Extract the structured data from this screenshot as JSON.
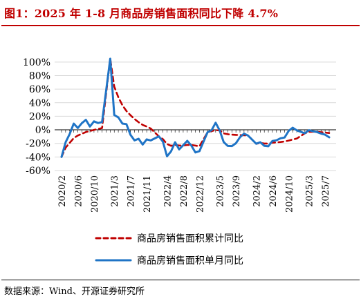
{
  "header": {
    "title": "图1：2025 年 1-8 月商品房销售面积同比下降 4.7%"
  },
  "footer": {
    "source": "数据来源：Wind、开源证券研究所"
  },
  "colors": {
    "title_red": "#c00000",
    "cumulative_series": "#c00000",
    "monthly_series": "#1f74c6",
    "grid": "#d9d9d9"
  },
  "chart_data": {
    "type": "line",
    "ylim": [
      -60,
      110
    ],
    "yticks": [
      "-60%",
      "-40%",
      "-20%",
      "0%",
      "20%",
      "40%",
      "60%",
      "80%",
      "100%"
    ],
    "ytick_values": [
      -60,
      -40,
      -20,
      0,
      20,
      40,
      60,
      80,
      100
    ],
    "grid": "horizontal",
    "legend_placement": "bottom-center",
    "x": [
      "2020-02",
      "2020-03",
      "2020-04",
      "2020-05",
      "2020-06",
      "2020-07",
      "2020-08",
      "2020-09",
      "2020-10",
      "2020-11",
      "2020-12",
      "2021-01",
      "2021-02",
      "2021-03",
      "2021-04",
      "2021-05",
      "2021-06",
      "2021-07",
      "2021-08",
      "2021-09",
      "2021-10",
      "2021-11",
      "2021-12",
      "2022-01",
      "2022-02",
      "2022-03",
      "2022-04",
      "2022-05",
      "2022-06",
      "2022-07",
      "2022-08",
      "2022-09",
      "2022-10",
      "2022-11",
      "2022-12",
      "2023-01",
      "2023-02",
      "2023-03",
      "2023-04",
      "2023-05",
      "2023-06",
      "2023-07",
      "2023-08",
      "2023-09",
      "2023-10",
      "2023-11",
      "2023-12",
      "2024-01",
      "2024-02",
      "2024-03",
      "2024-04",
      "2024-05",
      "2024-06",
      "2024-07",
      "2024-08",
      "2024-09",
      "2024-10",
      "2024-11",
      "2024-12",
      "2025-01",
      "2025-02",
      "2025-03",
      "2025-04",
      "2025-05",
      "2025-06",
      "2025-07",
      "2025-08"
    ],
    "xtick_labels": [
      "2020/2",
      "2020/6",
      "2020/10",
      "2021/3",
      "2021/7",
      "2021/11",
      "2022/4",
      "2022/8",
      "2022/12",
      "2023/5",
      "2023/9",
      "2024/2",
      "2024/6",
      "2024/10",
      "2025/3",
      "2025/7"
    ],
    "series": [
      {
        "name": "商品房销售面积累计同比",
        "style": "dashed",
        "color": "#c00000",
        "values": [
          -39.9,
          -26.3,
          -19.3,
          -12.3,
          -8.4,
          -5.8,
          -3.3,
          -1.8,
          0,
          1.3,
          2.6,
          null,
          104.9,
          63.8,
          48.1,
          36.3,
          27.7,
          21.5,
          15.9,
          11.3,
          7.3,
          4.8,
          1.9,
          null,
          -9.6,
          -13.8,
          -20.9,
          -23.6,
          -22.2,
          -23.1,
          -23.0,
          -22.2,
          -22.3,
          -23.3,
          -24.3,
          null,
          -3.6,
          -1.8,
          -0.4,
          -0.9,
          -5.3,
          -6.5,
          -7.1,
          -7.5,
          -7.8,
          -8.0,
          -8.5,
          null,
          -20.5,
          -19.4,
          -20.2,
          -20.3,
          -19.0,
          -18.6,
          -18.0,
          -17.1,
          -15.8,
          -14.3,
          -12.9,
          null,
          -5.1,
          -3.0,
          -2.8,
          -2.9,
          -3.5,
          -4.0,
          -4.7
        ]
      },
      {
        "name": "商品房销售面积单月同比",
        "style": "solid",
        "color": "#1f74c6",
        "values": [
          -39.9,
          -18.3,
          -6.3,
          9.2,
          2.7,
          9.8,
          14.7,
          4.8,
          12.5,
          10.0,
          11.5,
          null,
          104.9,
          21.8,
          18.3,
          9.2,
          8.4,
          -7.5,
          -15.5,
          -13.2,
          -21.7,
          -14.1,
          -15.6,
          null,
          -9.6,
          -17.7,
          -39.0,
          -31.8,
          -18.3,
          -28.9,
          -22.6,
          -16.2,
          -23.2,
          -33.3,
          -31.5,
          null,
          -3.6,
          -0.5,
          10.4,
          -1.1,
          -18.2,
          -23.8,
          -24.0,
          -19.8,
          -10.9,
          -5.6,
          -8.5,
          null,
          -20.5,
          -18.3,
          -23.6,
          -24.3,
          -16.4,
          -15.4,
          -12.5,
          -11.3,
          -1.6,
          3.1,
          -0.8,
          null,
          -5.1,
          -0.5,
          -2.1,
          -3.3,
          -5.5,
          -7.2,
          -11.0
        ]
      }
    ]
  }
}
